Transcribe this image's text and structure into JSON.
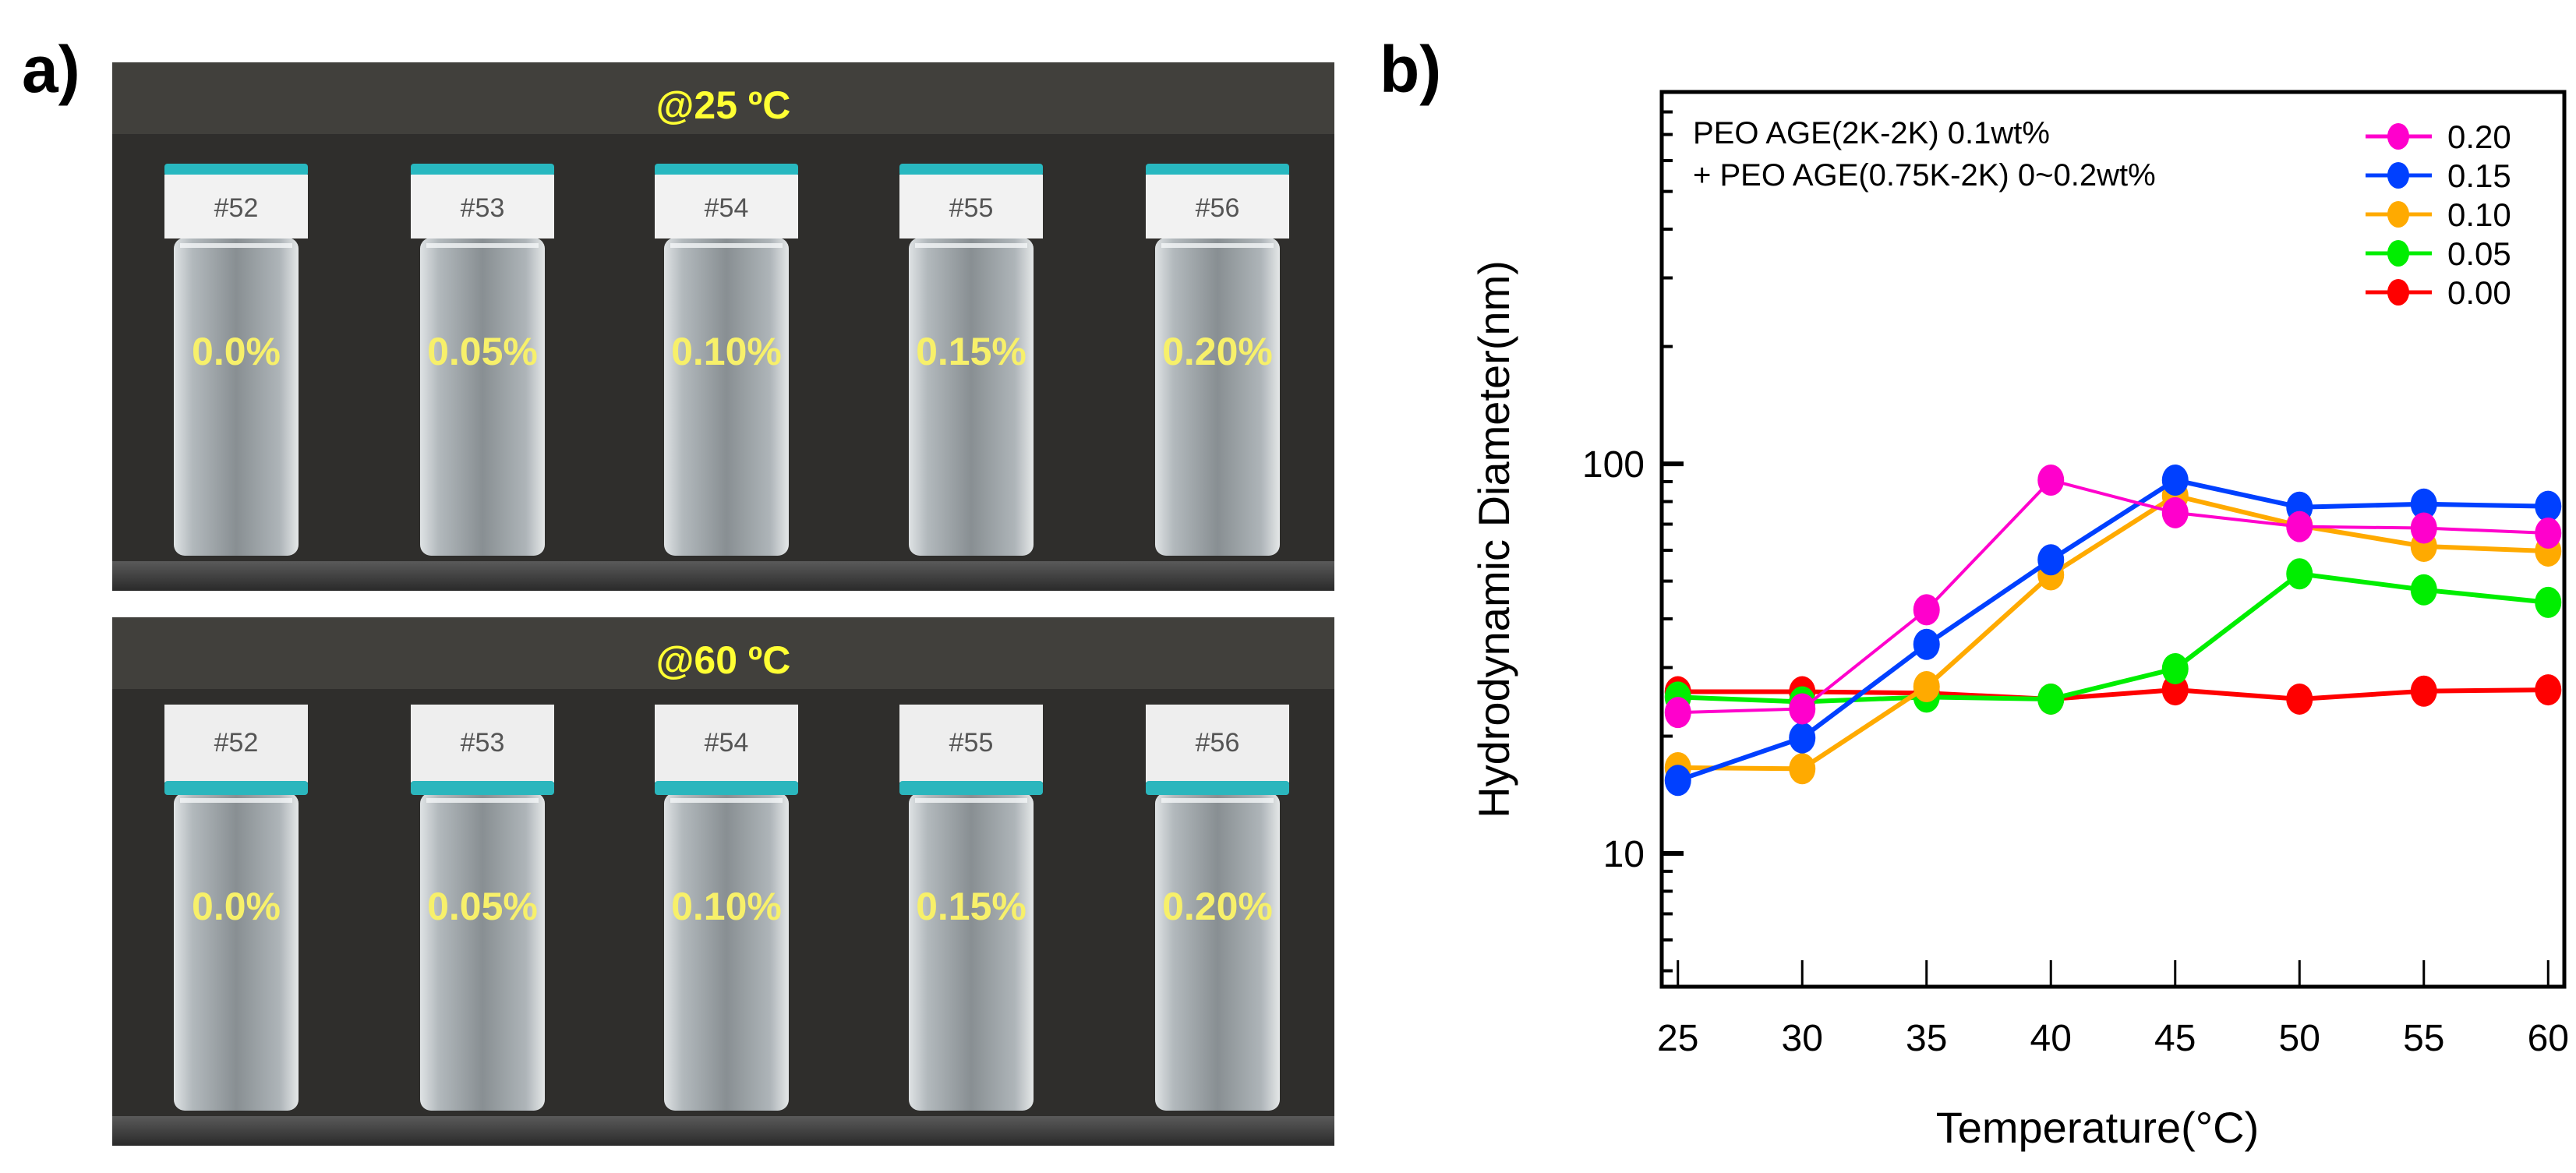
{
  "panel_a": {
    "label": "a)",
    "photos": [
      {
        "header": "@25 ºC",
        "vials": [
          {
            "id": "#52",
            "percent": "0.0%"
          },
          {
            "id": "#53",
            "percent": "0.05%"
          },
          {
            "id": "#54",
            "percent": "0.10%"
          },
          {
            "id": "#55",
            "percent": "0.15%"
          },
          {
            "id": "#56",
            "percent": "0.20%"
          }
        ]
      },
      {
        "header": "@60 ºC",
        "vials": [
          {
            "id": "#52",
            "percent": "0.0%"
          },
          {
            "id": "#53",
            "percent": "0.05%"
          },
          {
            "id": "#54",
            "percent": "0.10%"
          },
          {
            "id": "#55",
            "percent": "0.15%"
          },
          {
            "id": "#56",
            "percent": "0.20%"
          }
        ]
      }
    ]
  },
  "panel_b": {
    "label": "b)"
  },
  "chart_data": {
    "type": "line",
    "xlabel": "Temperature(°C)",
    "ylabel": "Hydrodynamic Diameter(nm)",
    "yscale": "log",
    "xlim": [
      24.35,
      60.65
    ],
    "ylim": [
      4.55,
      900
    ],
    "x_ticks": [
      25,
      30,
      35,
      40,
      45,
      50,
      55,
      60
    ],
    "x_tick_labels": [
      "25",
      "30",
      "35",
      "40",
      "45",
      "50",
      "55",
      "60"
    ],
    "y_ticks": [
      10,
      100
    ],
    "y_tick_labels": [
      "10",
      "100"
    ],
    "annotation": [
      "PEO AGE(2K-2K) 0.1wt%",
      "+ PEO AGE(0.75K-2K) 0~0.2wt%"
    ],
    "legend_position": "top-right",
    "grid": false,
    "x": [
      25,
      30,
      35,
      40,
      45,
      50,
      55,
      60
    ],
    "series": [
      {
        "name": "0.20",
        "color": "#ff00cc",
        "values": [
          23.0,
          23.5,
          42.2,
          90.8,
          74.9,
          69.0,
          68.4,
          66.4
        ]
      },
      {
        "name": "0.15",
        "color": "#0040ff",
        "values": [
          15.4,
          19.8,
          34.4,
          56.7,
          90.8,
          77.4,
          78.8,
          77.8
        ]
      },
      {
        "name": "0.10",
        "color": "#ffaa00",
        "values": [
          16.6,
          16.5,
          26.8,
          51.9,
          82.8,
          69.4,
          61.4,
          59.7
        ]
      },
      {
        "name": "0.05",
        "color": "#00ee00",
        "values": [
          25.2,
          24.5,
          25.2,
          24.9,
          29.8,
          52.2,
          47.5,
          44.1
        ]
      },
      {
        "name": "0.00",
        "color": "#ff0000",
        "values": [
          26.0,
          26.0,
          25.8,
          24.9,
          26.3,
          24.9,
          26.1,
          26.3
        ]
      }
    ]
  }
}
